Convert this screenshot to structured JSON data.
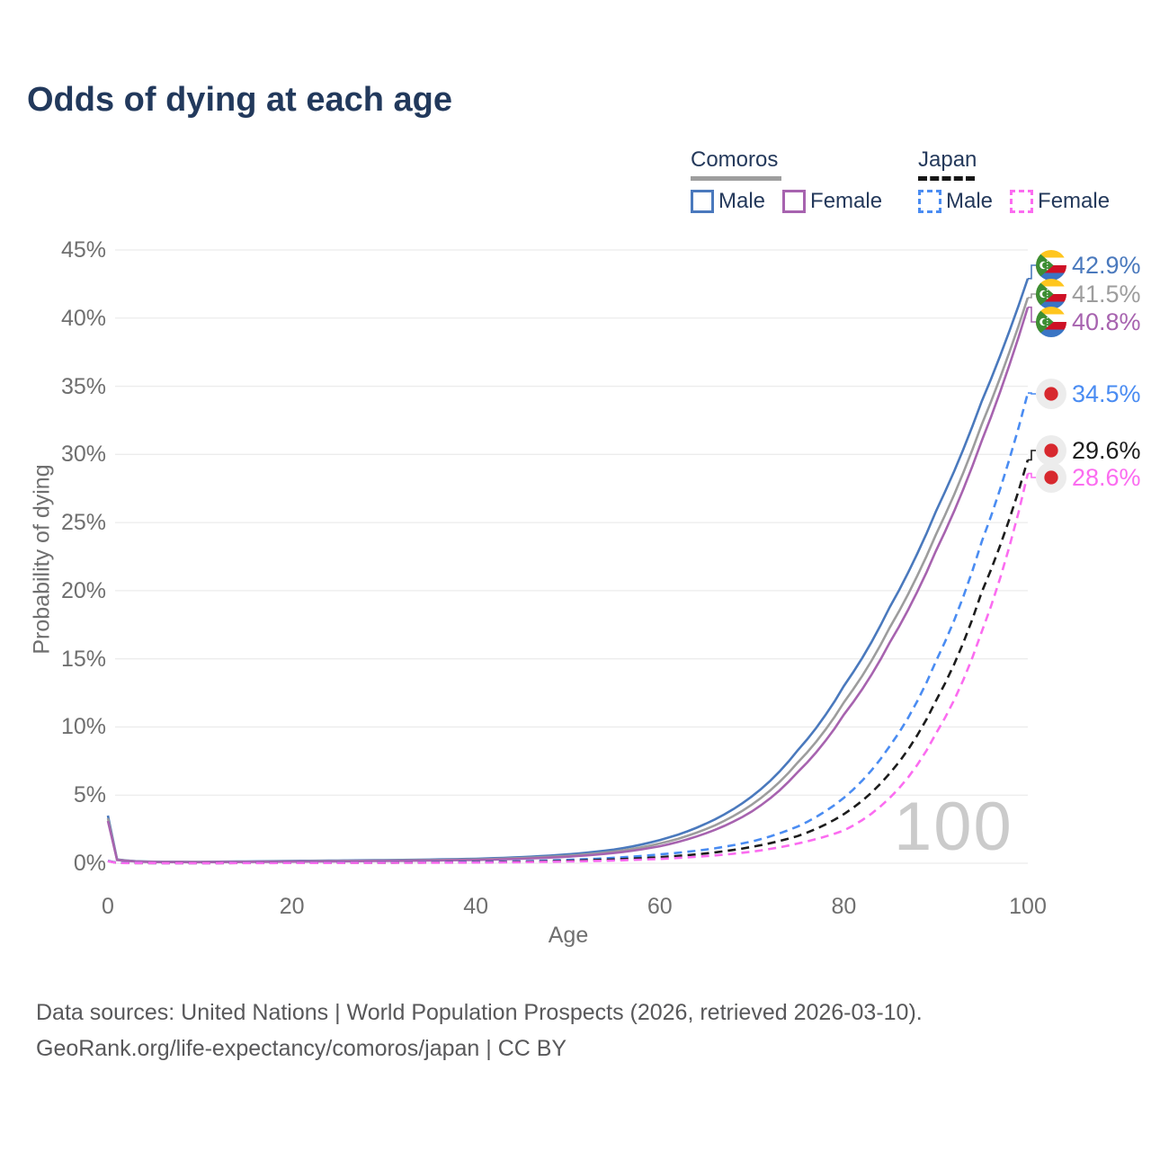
{
  "title": "Odds of dying at each age",
  "watermark_age": "100",
  "legend": {
    "groups": [
      {
        "country": "Comoros",
        "line_style": "solid",
        "underline_color": "#9e9e9e",
        "items": [
          {
            "label": "Male",
            "color": "#4a79bd"
          },
          {
            "label": "Female",
            "color": "#a763af"
          }
        ]
      },
      {
        "country": "Japan",
        "line_style": "dashed",
        "underline_color": "#161616",
        "items": [
          {
            "label": "Male",
            "color": "#4a8cf2"
          },
          {
            "label": "Female",
            "color": "#fb6cf0"
          }
        ]
      }
    ]
  },
  "chart_data": {
    "type": "line",
    "title": "Odds of dying at each age",
    "xlabel": "Age",
    "ylabel": "Probability of dying",
    "xlim": [
      0,
      100
    ],
    "ylim": [
      0,
      45
    ],
    "x_ticks": [
      0,
      20,
      40,
      60,
      80,
      100
    ],
    "y_ticks": [
      0,
      5,
      10,
      15,
      20,
      25,
      30,
      35,
      40,
      45
    ],
    "y_tick_labels": [
      "0%",
      "5%",
      "10%",
      "15%",
      "20%",
      "25%",
      "30%",
      "35%",
      "40%",
      "45%"
    ],
    "grid": "horizontal",
    "legend_position": "top-right",
    "series": [
      {
        "name": "Comoros Male",
        "country": "Comoros",
        "sex": "male",
        "color": "#4a79bd",
        "dash": false,
        "end_label": "42.9%",
        "points": [
          [
            0,
            3.5
          ],
          [
            1,
            0.28
          ],
          [
            3,
            0.15
          ],
          [
            5,
            0.11
          ],
          [
            10,
            0.1
          ],
          [
            15,
            0.13
          ],
          [
            20,
            0.17
          ],
          [
            25,
            0.2
          ],
          [
            30,
            0.23
          ],
          [
            35,
            0.27
          ],
          [
            40,
            0.33
          ],
          [
            45,
            0.45
          ],
          [
            50,
            0.65
          ],
          [
            55,
            1.0
          ],
          [
            60,
            1.7
          ],
          [
            65,
            2.9
          ],
          [
            70,
            4.9
          ],
          [
            75,
            8.3
          ],
          [
            80,
            13.0
          ],
          [
            85,
            18.8
          ],
          [
            90,
            25.8
          ],
          [
            95,
            33.9
          ],
          [
            100,
            42.9
          ]
        ]
      },
      {
        "name": "Comoros Both sexes",
        "country": "Comoros",
        "sex": "both",
        "color": "#9d9d9d",
        "dash": false,
        "end_label": "41.5%",
        "points": [
          [
            0,
            3.3
          ],
          [
            1,
            0.26
          ],
          [
            3,
            0.14
          ],
          [
            5,
            0.1
          ],
          [
            10,
            0.09
          ],
          [
            15,
            0.11
          ],
          [
            20,
            0.14
          ],
          [
            25,
            0.17
          ],
          [
            30,
            0.2
          ],
          [
            35,
            0.23
          ],
          [
            40,
            0.28
          ],
          [
            45,
            0.38
          ],
          [
            50,
            0.55
          ],
          [
            55,
            0.85
          ],
          [
            60,
            1.45
          ],
          [
            65,
            2.5
          ],
          [
            70,
            4.3
          ],
          [
            75,
            7.4
          ],
          [
            80,
            11.8
          ],
          [
            85,
            17.3
          ],
          [
            90,
            24.1
          ],
          [
            95,
            32.2
          ],
          [
            100,
            41.5
          ]
        ]
      },
      {
        "name": "Comoros Female",
        "country": "Comoros",
        "sex": "female",
        "color": "#a763af",
        "dash": false,
        "end_label": "40.8%",
        "points": [
          [
            0,
            3.1
          ],
          [
            1,
            0.24
          ],
          [
            3,
            0.13
          ],
          [
            5,
            0.09
          ],
          [
            10,
            0.08
          ],
          [
            15,
            0.1
          ],
          [
            20,
            0.12
          ],
          [
            25,
            0.14
          ],
          [
            30,
            0.17
          ],
          [
            35,
            0.2
          ],
          [
            40,
            0.24
          ],
          [
            45,
            0.33
          ],
          [
            50,
            0.48
          ],
          [
            55,
            0.75
          ],
          [
            60,
            1.25
          ],
          [
            65,
            2.2
          ],
          [
            70,
            3.8
          ],
          [
            75,
            6.7
          ],
          [
            80,
            10.9
          ],
          [
            85,
            16.2
          ],
          [
            90,
            22.9
          ],
          [
            95,
            31.0
          ],
          [
            100,
            40.8
          ]
        ]
      },
      {
        "name": "Japan Male",
        "country": "Japan",
        "sex": "male",
        "color": "#4a8cf2",
        "dash": true,
        "end_label": "34.5%",
        "points": [
          [
            0,
            0.18
          ],
          [
            1,
            0.03
          ],
          [
            3,
            0.02
          ],
          [
            5,
            0.015
          ],
          [
            10,
            0.012
          ],
          [
            15,
            0.025
          ],
          [
            20,
            0.04
          ],
          [
            25,
            0.05
          ],
          [
            30,
            0.06
          ],
          [
            35,
            0.07
          ],
          [
            40,
            0.1
          ],
          [
            45,
            0.15
          ],
          [
            50,
            0.25
          ],
          [
            55,
            0.4
          ],
          [
            60,
            0.65
          ],
          [
            65,
            1.0
          ],
          [
            70,
            1.6
          ],
          [
            75,
            2.7
          ],
          [
            80,
            4.8
          ],
          [
            85,
            8.6
          ],
          [
            90,
            14.8
          ],
          [
            95,
            23.6
          ],
          [
            100,
            34.5
          ]
        ]
      },
      {
        "name": "Japan Both sexes",
        "country": "Japan",
        "sex": "both",
        "color": "#1c1c1c",
        "dash": true,
        "end_label": "29.6%",
        "points": [
          [
            0,
            0.16
          ],
          [
            1,
            0.025
          ],
          [
            3,
            0.015
          ],
          [
            5,
            0.012
          ],
          [
            10,
            0.01
          ],
          [
            15,
            0.02
          ],
          [
            20,
            0.03
          ],
          [
            25,
            0.035
          ],
          [
            30,
            0.04
          ],
          [
            35,
            0.05
          ],
          [
            40,
            0.07
          ],
          [
            45,
            0.11
          ],
          [
            50,
            0.18
          ],
          [
            55,
            0.28
          ],
          [
            60,
            0.45
          ],
          [
            65,
            0.72
          ],
          [
            70,
            1.2
          ],
          [
            75,
            2.0
          ],
          [
            80,
            3.6
          ],
          [
            85,
            6.6
          ],
          [
            90,
            11.9
          ],
          [
            95,
            19.9
          ],
          [
            100,
            29.6
          ]
        ]
      },
      {
        "name": "Japan Female",
        "country": "Japan",
        "sex": "female",
        "color": "#fb6cf0",
        "dash": true,
        "end_label": "28.6%",
        "points": [
          [
            0,
            0.15
          ],
          [
            1,
            0.02
          ],
          [
            3,
            0.012
          ],
          [
            5,
            0.01
          ],
          [
            10,
            0.008
          ],
          [
            15,
            0.012
          ],
          [
            20,
            0.018
          ],
          [
            25,
            0.022
          ],
          [
            30,
            0.03
          ],
          [
            35,
            0.04
          ],
          [
            40,
            0.05
          ],
          [
            45,
            0.08
          ],
          [
            50,
            0.13
          ],
          [
            55,
            0.2
          ],
          [
            60,
            0.32
          ],
          [
            65,
            0.52
          ],
          [
            70,
            0.85
          ],
          [
            75,
            1.45
          ],
          [
            80,
            2.4
          ],
          [
            85,
            4.8
          ],
          [
            90,
            9.5
          ],
          [
            95,
            17.0
          ],
          [
            100,
            28.6
          ]
        ]
      }
    ]
  },
  "end_labels": [
    {
      "flag": "comoros",
      "value": "42.9%",
      "color": "#4a79bd"
    },
    {
      "flag": "comoros",
      "value": "41.5%",
      "color": "#9d9d9d"
    },
    {
      "flag": "comoros",
      "value": "40.8%",
      "color": "#a763af"
    },
    {
      "flag": "japan",
      "value": "34.5%",
      "color": "#4a8cf2"
    },
    {
      "flag": "japan",
      "value": "29.6%",
      "color": "#1c1c1c"
    },
    {
      "flag": "japan",
      "value": "28.6%",
      "color": "#fb6cf0"
    }
  ],
  "footer": {
    "line1": "Data sources: United Nations | World Population Prospects (2026, retrieved 2026-03-10).",
    "line2": "GeoRank.org/life-expectancy/comoros/japan | CC BY"
  },
  "flag_colors": {
    "comoros": {
      "yellow": "#FFC61E",
      "white": "#FFFFFF",
      "red": "#CE1126",
      "blue": "#3A75C4",
      "green": "#3D8E33"
    },
    "japan": {
      "background": "#ececec",
      "disc": "#d7282e"
    }
  }
}
